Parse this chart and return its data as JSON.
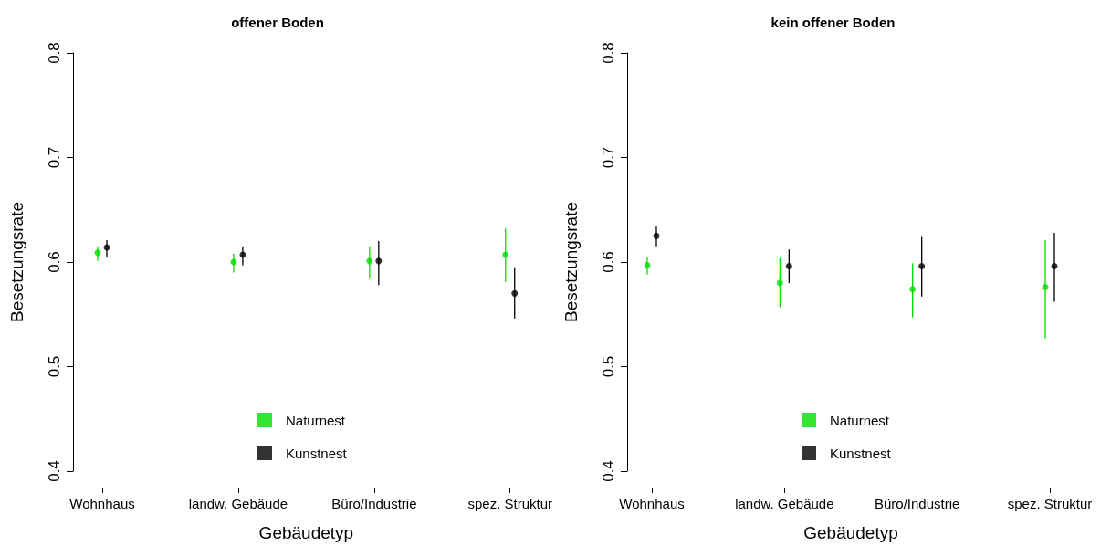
{
  "chart_data": [
    {
      "type": "scatter",
      "title": "offener Boden",
      "xlabel": "Gebäudetyp",
      "ylabel": "Besetzungsrate",
      "categories": [
        "Wohnhaus",
        "landw. Gebäude",
        "Büro/Industrie",
        "spez. Struktur"
      ],
      "series": [
        {
          "name": "Naturnest",
          "color": "#00dd00",
          "values": [
            0.609,
            0.6,
            0.601,
            0.607
          ],
          "errors": [
            [
              0.601,
              0.615
            ],
            [
              0.59,
              0.608
            ],
            [
              0.584,
              0.615
            ],
            [
              0.581,
              0.632
            ]
          ]
        },
        {
          "name": "Kunstnest",
          "color": "#000000",
          "values": [
            0.614,
            0.607,
            0.601,
            0.57
          ],
          "errors": [
            [
              0.605,
              0.621
            ],
            [
              0.597,
              0.615
            ],
            [
              0.578,
              0.62
            ],
            [
              0.546,
              0.595
            ]
          ]
        }
      ],
      "ylim": [
        0.4,
        0.8
      ],
      "yticks": [
        0.4,
        0.5,
        0.6,
        0.7,
        0.8
      ],
      "grid": false,
      "legend": "bottom",
      "marker": "circle"
    },
    {
      "type": "scatter",
      "title": "kein offener Boden",
      "xlabel": "Gebäudetyp",
      "ylabel": "Besetzungsrate",
      "categories": [
        "Wohnhaus",
        "landw. Gebäude",
        "Büro/Industrie",
        "spez. Struktur"
      ],
      "series": [
        {
          "name": "Naturnest",
          "color": "#00dd00",
          "values": [
            0.597,
            0.58,
            0.574,
            0.576
          ],
          "errors": [
            [
              0.588,
              0.605
            ],
            [
              0.557,
              0.604
            ],
            [
              0.547,
              0.599
            ],
            [
              0.527,
              0.621
            ]
          ]
        },
        {
          "name": "Kunstnest",
          "color": "#000000",
          "values": [
            0.625,
            0.596,
            0.596,
            0.596
          ],
          "errors": [
            [
              0.615,
              0.634
            ],
            [
              0.58,
              0.612
            ],
            [
              0.567,
              0.624
            ],
            [
              0.562,
              0.628
            ]
          ]
        }
      ],
      "ylim": [
        0.4,
        0.8
      ],
      "yticks": [
        0.4,
        0.5,
        0.6,
        0.7,
        0.8
      ],
      "grid": false,
      "legend": "bottom",
      "marker": "circle"
    }
  ]
}
